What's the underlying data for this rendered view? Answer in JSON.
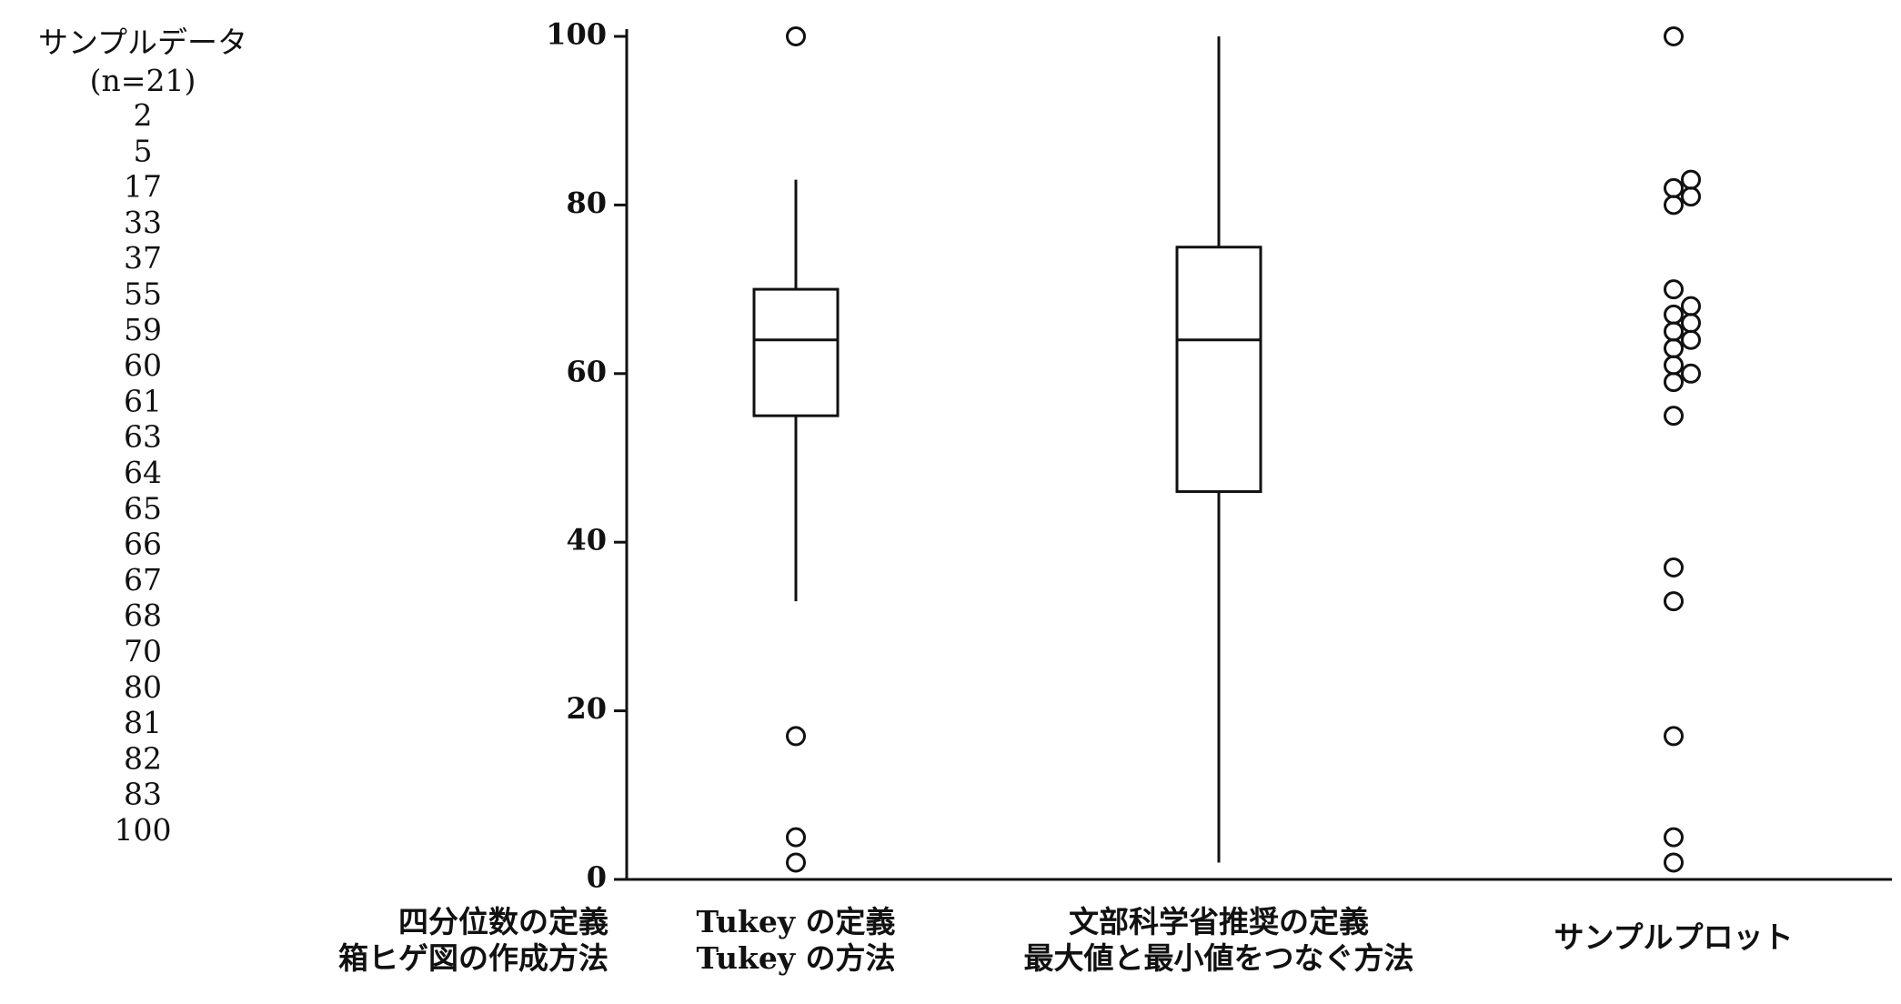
{
  "chart_data": {
    "type": "box",
    "sample_title": "サンプルデータ",
    "sample_n": "(n=21)",
    "row_header": [
      "四分位数の定義",
      "箱ヒゲ図の作成方法"
    ],
    "categories": [
      [
        "Tukey の定義",
        "Tukey の方法"
      ],
      [
        "文部科学省推奨の定義",
        "最大値と最小値をつなぐ方法"
      ],
      [
        "サンプルプロット"
      ]
    ],
    "boxes": [
      {
        "whislo": 33,
        "q1": 55,
        "med": 64,
        "q3": 70,
        "whishi": 83,
        "fliers": [
          2,
          5,
          17,
          100
        ]
      },
      {
        "whislo": 2,
        "q1": 46,
        "med": 64,
        "q3": 75,
        "whishi": 100,
        "fliers": []
      }
    ],
    "points": [
      2,
      5,
      17,
      33,
      37,
      55,
      59,
      60,
      61,
      63,
      64,
      65,
      66,
      67,
      68,
      70,
      80,
      81,
      82,
      83,
      100
    ],
    "ylim": [
      0,
      100
    ],
    "yticks": [
      0,
      20,
      40,
      60,
      80,
      100
    ]
  }
}
